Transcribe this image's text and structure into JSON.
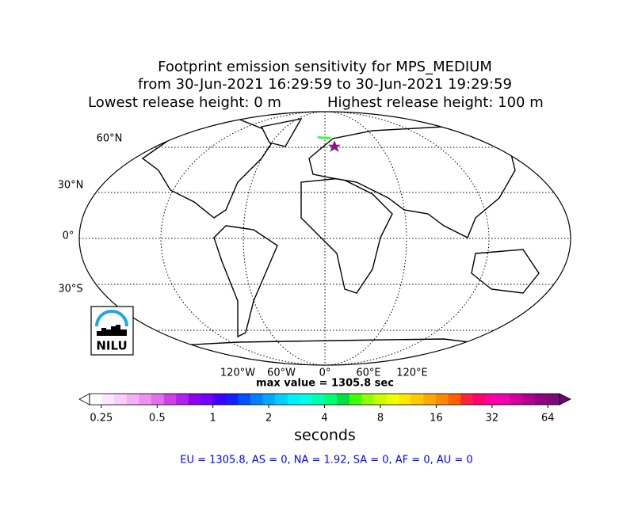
{
  "title": {
    "line1": "Footprint emission sensitivity for MPS_MEDIUM",
    "line2": "from 30-Jun-2021 16:29:59 to 30-Jun-2021 19:29:59",
    "left": "Lowest release height: 0 m",
    "right": "Highest release height: 100 m"
  },
  "map": {
    "lat_labels": [
      "60°N",
      "30°N",
      "0°",
      "30°S"
    ],
    "lon_labels": [
      "120°W",
      "60°W",
      "0°",
      "60°E",
      "120°E"
    ],
    "logo": "NILU",
    "max_value": "max value = 1305.8 sec"
  },
  "colorbar": {
    "log": true,
    "lim": [
      0.216,
      74
    ],
    "ticks": [
      0.25,
      0.5,
      1,
      2,
      4,
      8,
      16,
      32,
      64
    ],
    "label": "seconds",
    "under_color": "#ffffff",
    "over_color": "#6a0a6a",
    "colors": [
      "#ffffff",
      "#ffe6ff",
      "#fbcdfb",
      "#f5b0f5",
      "#ee90ee",
      "#e070e8",
      "#cc40e8",
      "#b020f0",
      "#9000f0",
      "#7000f8",
      "#4000ff",
      "#1020ff",
      "#0050ff",
      "#0080ff",
      "#00a8ff",
      "#00d0ff",
      "#00f0ff",
      "#00ffe0",
      "#00ffb0",
      "#00ff70",
      "#00e040",
      "#40ff00",
      "#90ff00",
      "#c8ff00",
      "#f0ff00",
      "#ffe800",
      "#ffc800",
      "#ffa800",
      "#ff8800",
      "#ff6000",
      "#ff2040",
      "#ff0070",
      "#ff00a0",
      "#f000b0",
      "#d000a0",
      "#b00090",
      "#900080",
      "#7a0a7a"
    ]
  },
  "footer": "EU = 1305.8,  AS = 0,  NA = 1.92,  SA = 0,  AF = 0,  AU = 0"
}
